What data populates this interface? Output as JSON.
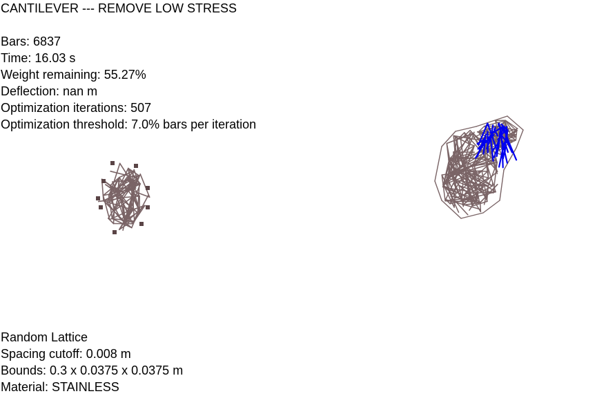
{
  "title": "CANTILEVER --- REMOVE LOW STRESS",
  "stats": {
    "bars": "Bars: 6837",
    "time": "Time: 16.03 s",
    "weight_remaining": "Weight remaining: 55.27%",
    "deflection": "Deflection: nan m",
    "iterations": "Optimization iterations: 507",
    "threshold": "Optimization threshold: 7.0% bars per iteration"
  },
  "lattice": {
    "type": "Random Lattice",
    "spacing": "Spacing cutoff: 0.008 m",
    "bounds": "Bounds: 0.3 x 0.0375 x 0.0375 m",
    "material": "Material: STAINLESS"
  },
  "colors": {
    "background": "#ffffff",
    "text": "#000000",
    "bar": "#7a6466",
    "bar_node": "#5a4446",
    "highlight": "#0000ee"
  }
}
